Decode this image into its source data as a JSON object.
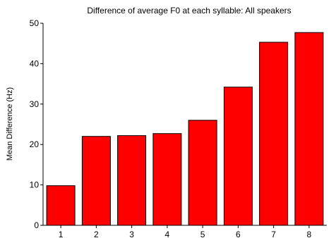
{
  "chart_data": {
    "type": "bar",
    "title": "Difference of average F0 at each syllable: All speakers",
    "xlabel": "",
    "ylabel": "Mean Difference (Hz)",
    "categories": [
      "1",
      "2",
      "3",
      "4",
      "5",
      "6",
      "7",
      "8"
    ],
    "values": [
      9.8,
      22.0,
      22.2,
      22.7,
      26.0,
      34.2,
      45.3,
      47.7
    ],
    "ylim": [
      0,
      50
    ],
    "yticks": [
      0,
      10,
      20,
      30,
      40,
      50
    ],
    "grid": false,
    "legend": "none",
    "bar_color": "#ff0000",
    "edge_color": "#000000"
  }
}
